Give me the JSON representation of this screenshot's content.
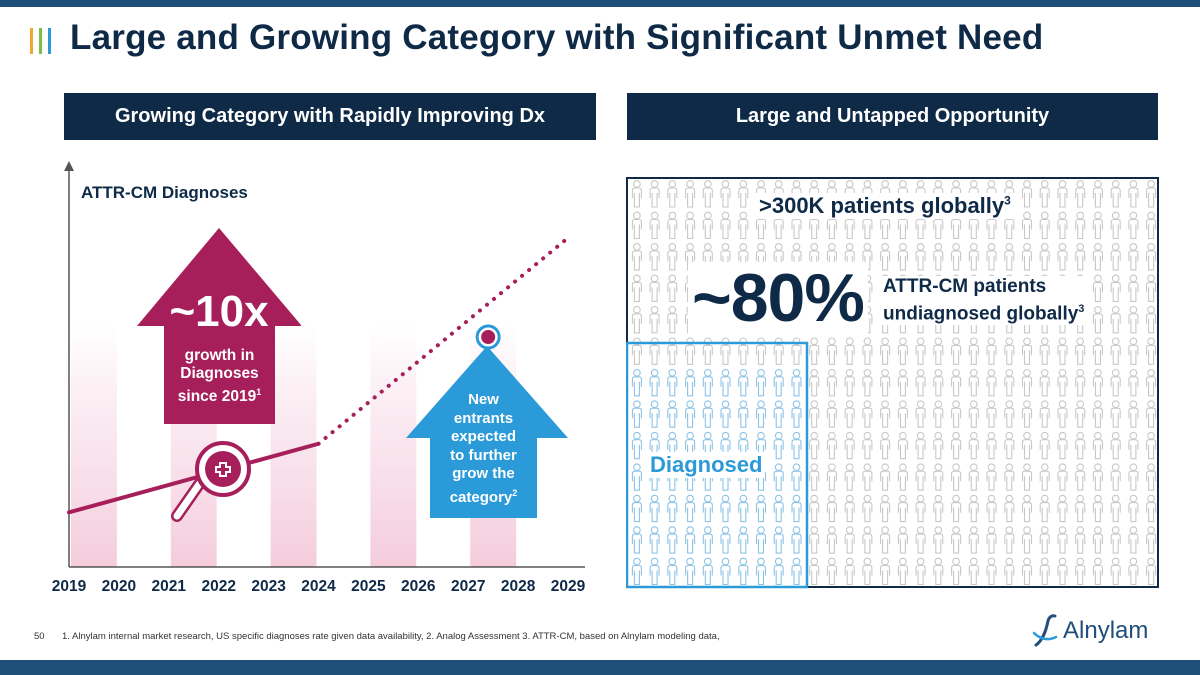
{
  "slide": {
    "title": "Large and Growing Category with Significant Unmet Need",
    "page_number": "50",
    "footnote": "1. Alnylam internal market research, US specific diagnoses rate given data availability, 2. Analog Assessment  3. ATTR-CM, based on Alnylam modeling data,",
    "logo_text": "Alnylam",
    "logo_icon": "alnylam-logo-icon"
  },
  "left_panel": {
    "header": "Growing Category with Rapidly Improving Dx",
    "big_arrow": {
      "big_text": "~10x",
      "line1": "growth in",
      "line2": "Diagnoses",
      "line3_prefix": "since 2019",
      "line3_sup": "1"
    },
    "small_arrow": {
      "line1": "New",
      "line2": "entrants",
      "line3": "expected",
      "line4": "to further",
      "line5": "grow the",
      "line6_prefix": "category",
      "line6_sup": "2"
    }
  },
  "right_panel": {
    "header": "Large and Untapped Opportunity",
    "patients_prefix": ">300K patients globally",
    "patients_sup": "3",
    "big_percent": "~80%",
    "undiag_line1": "ATTR-CM patients",
    "undiag_line2_prefix": "undiagnosed globally",
    "undiag_line2_sup": "3",
    "diagnosed_label": "Diagnosed",
    "icon_name": "person-icon"
  },
  "chart_data": {
    "type": "line",
    "ylabel": "ATTR-CM Diagnoses",
    "xlabel": "",
    "x": [
      2019,
      2020,
      2021,
      2022,
      2023,
      2024,
      2025,
      2026,
      2027,
      2028,
      2029
    ],
    "categories": [
      "2019",
      "2020",
      "2021",
      "2022",
      "2023",
      "2024",
      "2025",
      "2026",
      "2027",
      "2028",
      "2029"
    ],
    "series": [
      {
        "style": "solid",
        "x": [
          2019,
          2024
        ],
        "values": [
          1,
          10
        ]
      },
      {
        "style": "dotted",
        "x": [
          2024,
          2029
        ],
        "values": [
          10,
          37
        ]
      }
    ],
    "highlight_point": {
      "x": 2027.4,
      "y": 24
    },
    "colors": {
      "line": "#a61e5a",
      "axis": "#555555",
      "band": "#f7dbe7"
    },
    "grid": false,
    "legend": "none"
  },
  "colors": {
    "navy": "#0e2a47",
    "magenta": "#a61e5a",
    "blue": "#2b9ad9",
    "person_gray": "#c8c8c8",
    "person_blue": "#8cc4e6",
    "title_bar_1": "#f0a830",
    "title_bar_2": "#7ac143",
    "title_bar_3": "#2b9ad9"
  }
}
